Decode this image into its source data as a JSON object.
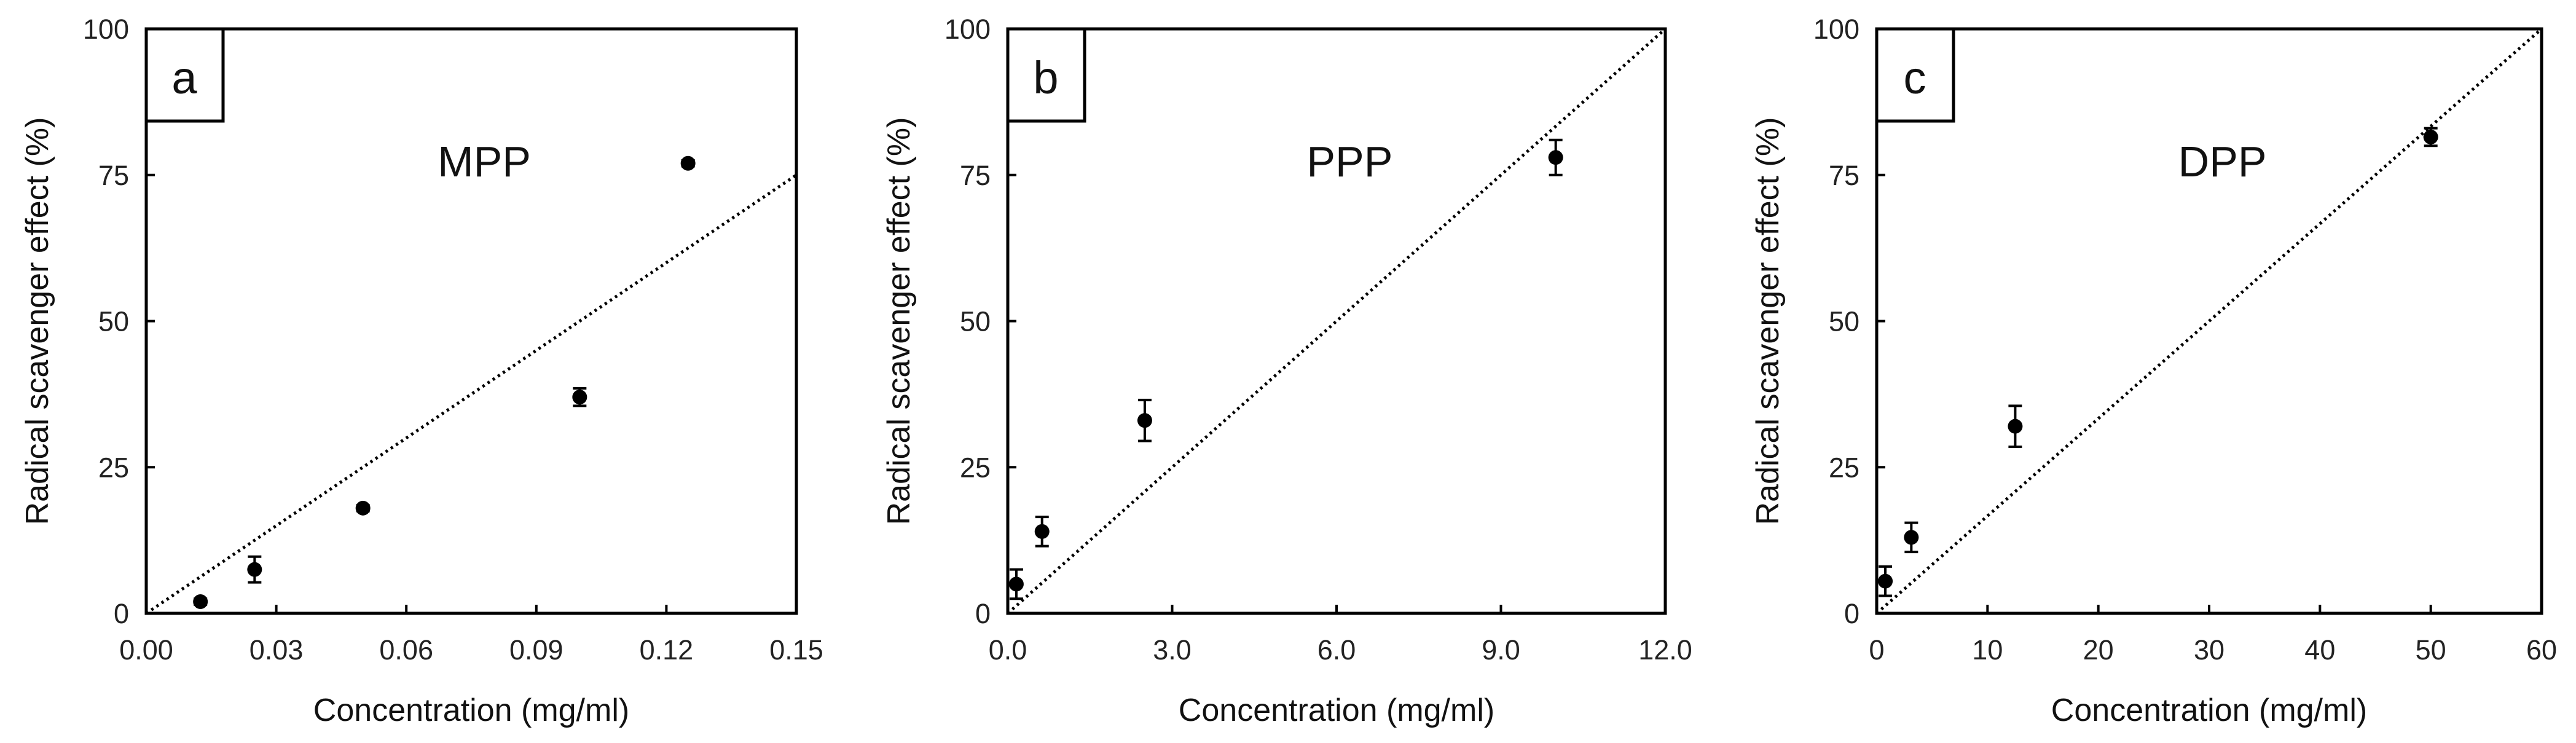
{
  "chart_data": [
    {
      "type": "scatter",
      "panel_label": "a",
      "title": "MPP",
      "xlabel": "Concentration (mg/ml)",
      "ylabel": "Radical scavenger effect (%)",
      "xlim": [
        0,
        0.15
      ],
      "ylim": [
        0,
        100
      ],
      "xticks": [
        "0.00",
        "0.03",
        "0.06",
        "0.09",
        "0.12",
        "0.15"
      ],
      "yticks": [
        "0",
        "25",
        "50",
        "75",
        "100"
      ],
      "x": [
        0.0125,
        0.025,
        0.05,
        0.1,
        0.125
      ],
      "y": [
        2,
        7.5,
        18,
        37,
        77
      ],
      "yerr": [
        0.5,
        2.2,
        0.5,
        1.5,
        0.5
      ],
      "reference_line": {
        "x": [
          0,
          0.15
        ],
        "y": [
          0,
          75
        ]
      },
      "marker_color": "#000000"
    },
    {
      "type": "scatter",
      "panel_label": "b",
      "title": "PPP",
      "xlabel": "Concentration (mg/ml)",
      "ylabel": "Radical scavenger effect (%)",
      "xlim": [
        0,
        12
      ],
      "ylim": [
        0,
        100
      ],
      "xticks": [
        "0.0",
        "3.0",
        "6.0",
        "9.0",
        "12.0"
      ],
      "yticks": [
        "0",
        "25",
        "50",
        "75",
        "100"
      ],
      "x": [
        0.156,
        0.625,
        2.5,
        10
      ],
      "y": [
        5,
        14,
        33,
        78
      ],
      "yerr": [
        2.5,
        2.5,
        3.5,
        3
      ],
      "reference_line": {
        "x": [
          0,
          12
        ],
        "y": [
          0,
          100
        ]
      },
      "marker_color": "#000000"
    },
    {
      "type": "scatter",
      "panel_label": "c",
      "title": "DPP",
      "xlabel": "Concentration (mg/ml)",
      "ylabel": "Radical scavenger effect (%)",
      "xlim": [
        0,
        60
      ],
      "ylim": [
        0,
        100
      ],
      "xticks": [
        "0",
        "10",
        "20",
        "30",
        "40",
        "50",
        "60"
      ],
      "yticks": [
        "0",
        "25",
        "50",
        "75",
        "100"
      ],
      "x": [
        0.78,
        3.125,
        12.5,
        50
      ],
      "y": [
        5.5,
        13,
        32,
        81.5
      ],
      "yerr": [
        2.5,
        2.5,
        3.5,
        1.5
      ],
      "reference_line": {
        "x": [
          0,
          60
        ],
        "y": [
          0,
          100
        ]
      },
      "marker_color": "#000000"
    }
  ]
}
